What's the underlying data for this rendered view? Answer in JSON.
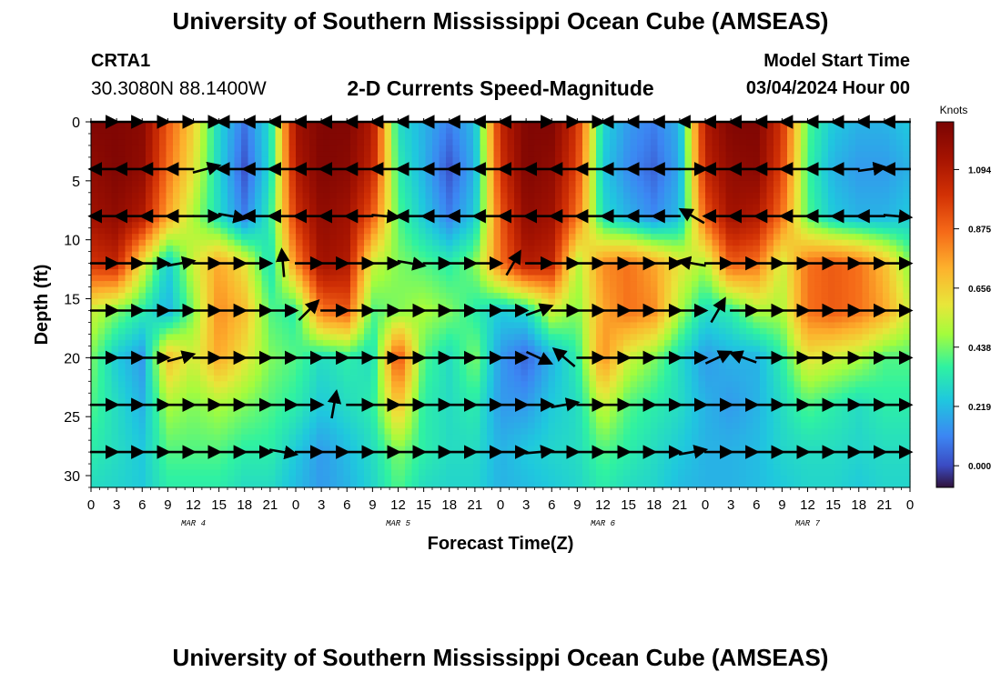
{
  "header": {
    "title": "University of Southern Mississippi Ocean Cube (AMSEAS)",
    "station_id": "CRTA1",
    "station_coords": "30.3080N  88.1400W",
    "plot_title": "2-D Currents Speed-Magnitude",
    "model_label": "Model Start Time",
    "model_time": "03/04/2024 Hour 00"
  },
  "footer": {
    "title": "University of Southern Mississippi Ocean Cube (AMSEAS)"
  },
  "chart_data": {
    "type": "heatmap",
    "title": "2-D Currents Speed-Magnitude",
    "xlabel": "Forecast Time(Z)",
    "ylabel": "Depth (ft)",
    "x_ticks": [
      "0",
      "3",
      "6",
      "9",
      "12",
      "15",
      "18",
      "21",
      "0",
      "3",
      "6",
      "9",
      "12",
      "15",
      "18",
      "21",
      "0",
      "3",
      "6",
      "9",
      "12",
      "15",
      "18",
      "21",
      "0",
      "3",
      "6",
      "9",
      "12",
      "15",
      "18",
      "21",
      "0"
    ],
    "day_labels": [
      "MAR 4",
      "MAR 5",
      "MAR 6",
      "MAR 7"
    ],
    "y_ticks": [
      0,
      5,
      10,
      15,
      20,
      25,
      30
    ],
    "ylim": [
      0,
      31
    ],
    "xlim_hours": [
      0,
      96
    ],
    "colorbar": {
      "unit": "Knots",
      "ticks": [
        "1.094",
        "0.875",
        "0.656",
        "0.438",
        "0.219",
        "0.000"
      ],
      "range": [
        -0.08,
        1.27
      ]
    },
    "speed_knots_by_hour_depth": {
      "hours": [
        0,
        3,
        6,
        9,
        12,
        15,
        18,
        21,
        24,
        27,
        30,
        33,
        36,
        39,
        42,
        45,
        48,
        51,
        54,
        57,
        60,
        63,
        66,
        69,
        72,
        75,
        78,
        81,
        84,
        87,
        90,
        93,
        96
      ],
      "depths_ft": [
        0,
        4,
        8,
        12,
        16,
        20,
        24,
        28,
        31
      ],
      "values": [
        [
          1.25,
          1.25,
          1.22,
          0.9,
          0.65,
          0.28,
          0.08,
          0.3,
          1.15,
          1.25,
          1.25,
          1.1,
          0.3,
          0.2,
          0.1,
          0.22,
          1.05,
          1.25,
          1.25,
          1.0,
          0.28,
          0.15,
          0.1,
          0.2,
          1.1,
          1.25,
          1.25,
          1.0,
          0.4,
          0.25,
          0.2,
          0.2,
          0.25
        ],
        [
          1.2,
          1.25,
          1.2,
          0.85,
          0.6,
          0.28,
          0.02,
          0.3,
          1.1,
          1.25,
          1.22,
          1.05,
          0.35,
          0.2,
          0.02,
          0.2,
          1.0,
          1.25,
          1.2,
          0.95,
          0.25,
          0.12,
          0.05,
          0.18,
          1.05,
          1.2,
          1.22,
          0.95,
          0.38,
          0.2,
          0.15,
          0.15,
          0.2
        ],
        [
          1.15,
          1.2,
          1.1,
          0.75,
          0.5,
          0.3,
          0.1,
          0.35,
          1.0,
          1.2,
          1.15,
          0.9,
          0.4,
          0.25,
          0.1,
          0.25,
          0.9,
          1.2,
          1.15,
          0.85,
          0.3,
          0.2,
          0.12,
          0.22,
          0.9,
          1.15,
          1.1,
          0.85,
          0.4,
          0.25,
          0.2,
          0.2,
          0.25
        ],
        [
          1.0,
          1.05,
          0.6,
          0.25,
          0.55,
          0.75,
          0.6,
          0.3,
          0.8,
          1.15,
          1.1,
          0.55,
          0.45,
          0.4,
          0.35,
          0.45,
          0.85,
          1.1,
          1.05,
          0.5,
          0.8,
          0.85,
          0.75,
          0.6,
          0.5,
          0.9,
          0.85,
          0.55,
          0.85,
          0.9,
          0.85,
          0.7,
          0.45
        ],
        [
          0.55,
          0.45,
          0.35,
          0.2,
          0.45,
          0.8,
          0.7,
          0.4,
          0.35,
          0.85,
          0.9,
          0.4,
          0.45,
          0.5,
          0.45,
          0.35,
          0.25,
          0.3,
          0.55,
          0.45,
          0.75,
          0.85,
          0.8,
          0.5,
          0.3,
          0.35,
          0.5,
          0.5,
          0.85,
          0.9,
          0.85,
          0.75,
          0.55
        ],
        [
          0.45,
          0.25,
          0.15,
          0.7,
          0.55,
          0.75,
          0.6,
          0.45,
          0.4,
          0.3,
          0.35,
          0.3,
          0.95,
          0.4,
          0.3,
          0.45,
          0.15,
          0.05,
          0.2,
          0.35,
          0.8,
          0.55,
          0.45,
          0.3,
          0.15,
          0.2,
          0.2,
          0.35,
          0.6,
          0.55,
          0.5,
          0.4,
          0.4
        ],
        [
          0.4,
          0.3,
          0.2,
          0.5,
          0.45,
          0.5,
          0.45,
          0.4,
          0.35,
          0.25,
          0.3,
          0.35,
          0.7,
          0.35,
          0.3,
          0.35,
          0.15,
          0.15,
          0.25,
          0.3,
          0.55,
          0.4,
          0.35,
          0.3,
          0.2,
          0.15,
          0.2,
          0.3,
          0.4,
          0.35,
          0.3,
          0.35,
          0.35
        ],
        [
          0.35,
          0.3,
          0.25,
          0.4,
          0.4,
          0.4,
          0.35,
          0.35,
          0.25,
          0.15,
          0.22,
          0.3,
          0.45,
          0.35,
          0.3,
          0.3,
          0.2,
          0.25,
          0.28,
          0.3,
          0.4,
          0.35,
          0.3,
          0.25,
          0.2,
          0.2,
          0.22,
          0.28,
          0.3,
          0.3,
          0.28,
          0.3,
          0.3
        ],
        [
          0.3,
          0.28,
          0.25,
          0.35,
          0.35,
          0.35,
          0.3,
          0.3,
          0.22,
          0.15,
          0.2,
          0.28,
          0.4,
          0.3,
          0.28,
          0.28,
          0.2,
          0.22,
          0.25,
          0.28,
          0.35,
          0.3,
          0.28,
          0.22,
          0.2,
          0.2,
          0.22,
          0.25,
          0.28,
          0.28,
          0.25,
          0.28,
          0.28
        ]
      ]
    },
    "vector_arrows_deg_by_hour_depth": {
      "note": "arrow direction in screen degrees (0 = pointing right, -90 = pointing up)",
      "depths_ft": [
        0,
        4,
        8,
        12,
        16,
        20,
        24,
        28
      ],
      "hours": [
        0,
        3,
        6,
        9,
        12,
        15,
        18,
        21,
        24,
        27,
        30,
        33,
        36,
        39,
        42,
        45,
        48,
        51,
        54,
        57,
        60,
        63,
        66,
        69,
        72,
        75,
        78,
        81,
        84,
        87,
        90,
        93
      ],
      "angles": [
        [
          0,
          0,
          0,
          0,
          0,
          180,
          180,
          180,
          180,
          180,
          180,
          180,
          180,
          180,
          180,
          180,
          180,
          0,
          0,
          0,
          180,
          180,
          180,
          180,
          180,
          180,
          180,
          180,
          180,
          180,
          180,
          180
        ],
        [
          180,
          180,
          180,
          180,
          -15,
          180,
          180,
          180,
          180,
          180,
          180,
          180,
          180,
          180,
          180,
          180,
          180,
          180,
          180,
          180,
          180,
          180,
          180,
          0,
          180,
          180,
          180,
          180,
          180,
          180,
          -8,
          180
        ],
        [
          180,
          180,
          180,
          180,
          0,
          10,
          180,
          180,
          180,
          180,
          180,
          5,
          180,
          180,
          180,
          180,
          180,
          180,
          180,
          180,
          180,
          180,
          180,
          -150,
          180,
          180,
          180,
          180,
          180,
          180,
          180,
          5
        ],
        [
          0,
          0,
          0,
          -10,
          0,
          0,
          0,
          -95,
          0,
          0,
          0,
          0,
          10,
          0,
          0,
          0,
          -60,
          0,
          0,
          0,
          0,
          0,
          0,
          -170,
          0,
          0,
          0,
          0,
          0,
          0,
          0,
          0
        ],
        [
          0,
          0,
          0,
          0,
          0,
          0,
          0,
          0,
          -45,
          0,
          0,
          0,
          0,
          0,
          0,
          0,
          0,
          -20,
          0,
          0,
          0,
          0,
          0,
          0,
          -60,
          0,
          0,
          0,
          0,
          0,
          0,
          0
        ],
        [
          0,
          0,
          0,
          -15,
          0,
          0,
          0,
          0,
          0,
          0,
          0,
          0,
          0,
          0,
          0,
          0,
          0,
          25,
          -140,
          0,
          0,
          0,
          0,
          0,
          -25,
          200,
          0,
          0,
          0,
          0,
          0,
          0
        ],
        [
          0,
          0,
          0,
          0,
          0,
          0,
          0,
          0,
          0,
          -80,
          0,
          0,
          0,
          0,
          0,
          0,
          0,
          0,
          -10,
          0,
          0,
          0,
          0,
          0,
          0,
          0,
          0,
          0,
          0,
          0,
          0,
          0
        ],
        [
          0,
          0,
          0,
          0,
          0,
          0,
          0,
          10,
          0,
          0,
          0,
          0,
          0,
          0,
          0,
          0,
          0,
          -5,
          0,
          0,
          0,
          0,
          0,
          -10,
          0,
          0,
          0,
          0,
          0,
          0,
          0,
          0
        ]
      ]
    }
  }
}
